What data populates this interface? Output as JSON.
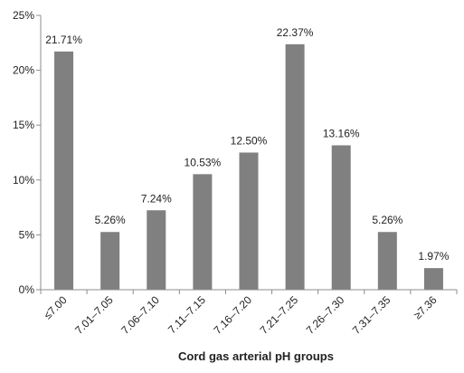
{
  "chart_data": {
    "type": "bar",
    "title": "",
    "xlabel": "Cord gas arterial pH groups",
    "ylabel": "",
    "categories": [
      "≤7.00",
      "7.01–7.05",
      "7.06–7.10",
      "7.11–7.15",
      "7.16–7.20",
      "7.21–7.25",
      "7.26–7.30",
      "7.31–7.35",
      "≥7.36"
    ],
    "values": [
      21.71,
      5.26,
      7.24,
      10.53,
      12.5,
      22.37,
      13.16,
      5.26,
      1.97
    ],
    "data_labels": [
      "21.71%",
      "5.26%",
      "7.24%",
      "10.53%",
      "12.50%",
      "22.37%",
      "13.16%",
      "5.26%",
      "1.97%"
    ],
    "ylim": [
      0,
      25
    ],
    "yticks": [
      0,
      5,
      10,
      15,
      20,
      25
    ],
    "ytick_labels": [
      "0%",
      "5%",
      "10%",
      "15%",
      "20%",
      "25%"
    ],
    "grid": false,
    "legend": "none",
    "bar_color": "#808080"
  }
}
